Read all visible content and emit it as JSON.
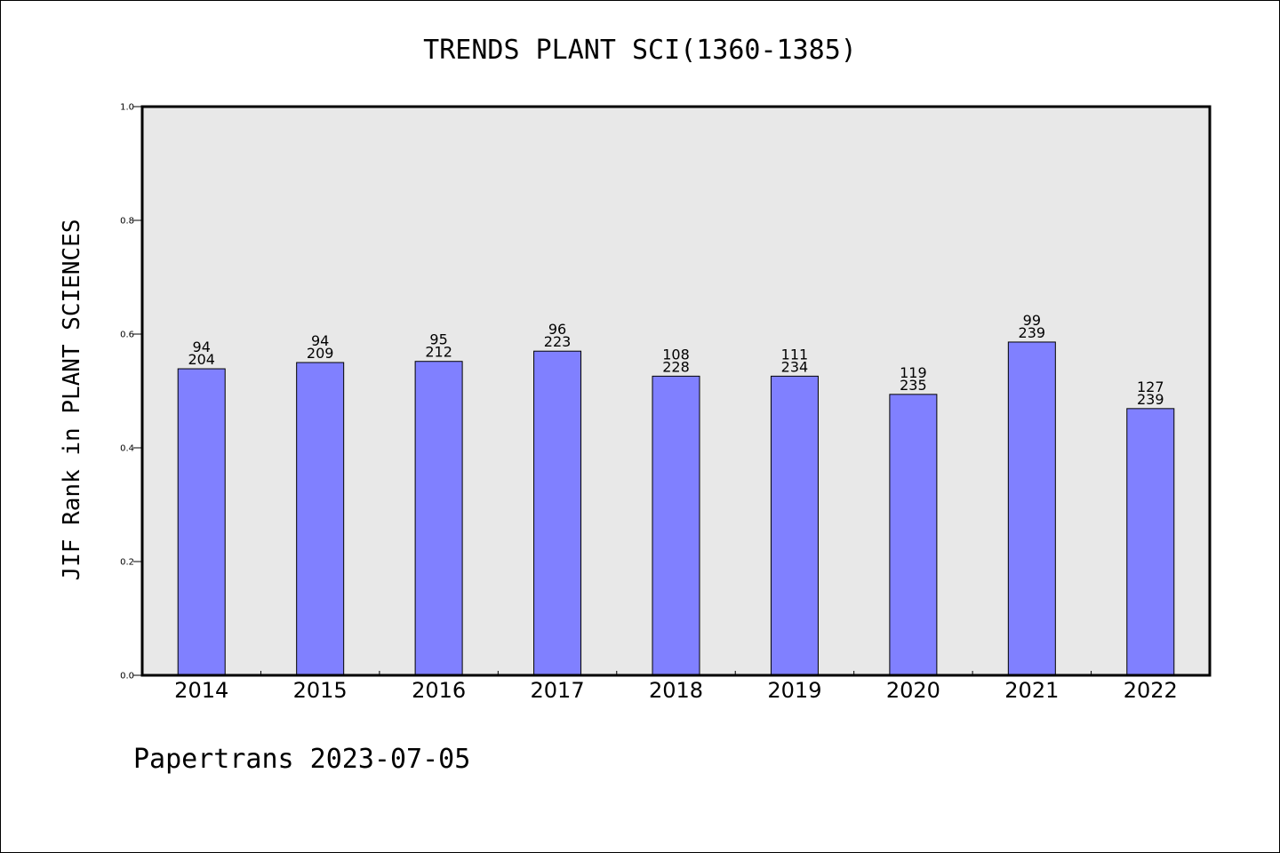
{
  "chart_data": {
    "type": "bar",
    "title": "TRENDS PLANT SCI(1360-1385)",
    "ylabel": "JIF Rank in PLANT SCIENCES",
    "xlabel": "",
    "ylim": [
      0,
      1.0
    ],
    "yticks": [
      "0.0",
      "0.2",
      "0.4",
      "0.6",
      "0.8",
      "1.0"
    ],
    "grid": false,
    "categories": [
      "2014",
      "2015",
      "2016",
      "2017",
      "2018",
      "2019",
      "2020",
      "2021",
      "2022"
    ],
    "values": [
      0.539,
      0.55,
      0.552,
      0.57,
      0.526,
      0.526,
      0.494,
      0.586,
      0.469
    ],
    "rank": [
      "94",
      "94",
      "95",
      "96",
      "108",
      "111",
      "119",
      "99",
      "127"
    ],
    "total": [
      "204",
      "209",
      "212",
      "223",
      "228",
      "234",
      "235",
      "239",
      "239"
    ],
    "colors": {
      "bar": "#8080ff",
      "plot_bg": "#e8e8e8"
    }
  },
  "footer": {
    "text": "Papertrans 2023-07-05"
  }
}
